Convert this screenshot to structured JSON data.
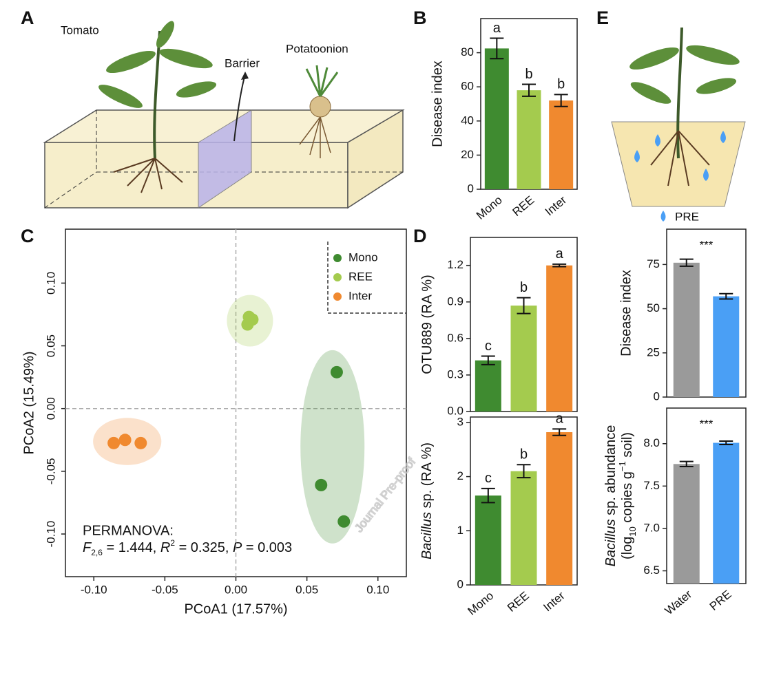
{
  "panel_labels": [
    "A",
    "B",
    "C",
    "D",
    "E"
  ],
  "illustration_a": {
    "tomato": "Tomato",
    "barrier": "Barrier",
    "potatoonion": "Potatoonion"
  },
  "illustration_e": {
    "legend": "PRE"
  },
  "watermark": "Journal Pre-proof",
  "chart_data": [
    {
      "type": "bar",
      "ylabel": "Disease index",
      "categories": [
        "Mono",
        "REE",
        "Inter"
      ],
      "values": [
        82.5,
        58,
        52
      ],
      "errors": [
        6,
        3.5,
        3.5
      ],
      "annotations": [
        "a",
        "b",
        "b"
      ],
      "colors": [
        "#3f8b30",
        "#a4cb4e",
        "#f0892f"
      ],
      "ylim": [
        0,
        100
      ],
      "yticks": [
        0,
        20,
        40,
        60,
        80
      ]
    },
    {
      "type": "scatter",
      "xlabel": "PCoA1 (17.57%)",
      "ylabel": "PCoA2 (15.49%)",
      "series": [
        {
          "name": "Mono",
          "color": "#3f8b30",
          "x": [
            0.071,
            0.06,
            0.076
          ],
          "y": [
            0.029,
            -0.061,
            -0.09
          ]
        },
        {
          "name": "REE",
          "color": "#a4cb4e",
          "x": [
            0.0092,
            0.0116,
            0.0082
          ],
          "y": [
            0.073,
            0.071,
            0.067
          ]
        },
        {
          "name": "Inter",
          "color": "#f0892f",
          "x": [
            -0.086,
            -0.078,
            -0.067
          ],
          "y": [
            -0.0275,
            -0.025,
            -0.0275
          ]
        }
      ],
      "xlim": [
        -0.12,
        0.12
      ],
      "ylim": [
        -0.134,
        0.143
      ],
      "xticks": [
        {
          "value": -0.1,
          "label": "-0.10"
        },
        {
          "value": -0.05,
          "label": "-0.05"
        },
        {
          "value": 0,
          "label": "0.00"
        },
        {
          "value": 0.05,
          "label": "0.05"
        },
        {
          "value": 0.1,
          "label": "0.10"
        }
      ],
      "yticks": [
        {
          "value": -0.1,
          "label": "-0.10"
        },
        {
          "value": -0.05,
          "label": "-0.05"
        },
        {
          "value": 0,
          "label": "0.00"
        },
        {
          "value": 0.05,
          "label": "0.05"
        },
        {
          "value": 0.1,
          "label": "0.10"
        }
      ],
      "zero_lines": true,
      "legend": "top-right",
      "annotation": "PERMANOVA:",
      "statistic": [
        "F",
        "2,6",
        " = 1.444, ",
        "R",
        "2",
        " = 0.325, ",
        "P",
        " = 0.003"
      ]
    },
    {
      "type": "bar",
      "ylabel": "OTU889 (RA %)",
      "values": [
        0.42,
        0.87,
        1.2
      ],
      "errors": [
        0.035,
        0.065,
        0.01
      ],
      "annotations": [
        "c",
        "b",
        "a"
      ],
      "colors": [
        "#3f8b30",
        "#a4cb4e",
        "#f0892f"
      ],
      "ylim": [
        0,
        1.43
      ],
      "yticks": [
        {
          "value": 0,
          "label": "0.0"
        },
        0.3,
        0.6,
        0.9,
        1.2
      ]
    },
    {
      "type": "bar",
      "ylabel": [
        "Bacillus",
        " sp. (RA %)"
      ],
      "categories": [
        "Mono",
        "REE",
        "Inter"
      ],
      "values": [
        1.65,
        2.1,
        2.82
      ],
      "errors": [
        0.13,
        0.12,
        0.06
      ],
      "annotations": [
        "c",
        "b",
        "a"
      ],
      "colors": [
        "#3f8b30",
        "#a4cb4e",
        "#f0892f"
      ],
      "ylim": [
        0,
        3.1
      ],
      "yticks": [
        0,
        1,
        2,
        3
      ]
    },
    {
      "type": "bar",
      "ylabel": "Disease index",
      "values": [
        76,
        57
      ],
      "errors": [
        2,
        1.5
      ],
      "annotation": "***",
      "colors": [
        "#9a9a9a",
        "#4a9ff5"
      ],
      "ylim": [
        0,
        95
      ],
      "yticks": [
        0,
        25,
        50,
        75
      ]
    },
    {
      "type": "bar",
      "ylabel": [
        "Bacillus",
        " sp. abundance"
      ],
      "ylabel2": [
        "(log",
        "10",
        " copies g",
        "−1",
        " soil)"
      ],
      "categories": [
        "Water",
        "PRE"
      ],
      "values": [
        7.76,
        8.01
      ],
      "errors": [
        0.03,
        0.02
      ],
      "annotation": "***",
      "colors": [
        "#9a9a9a",
        "#4a9ff5"
      ],
      "ylim": [
        6.35,
        8.42
      ],
      "yticks": [
        6.5,
        {
          "value": 7,
          "label": "7.0"
        },
        7.5,
        {
          "value": 8,
          "label": "8.0"
        }
      ]
    }
  ]
}
